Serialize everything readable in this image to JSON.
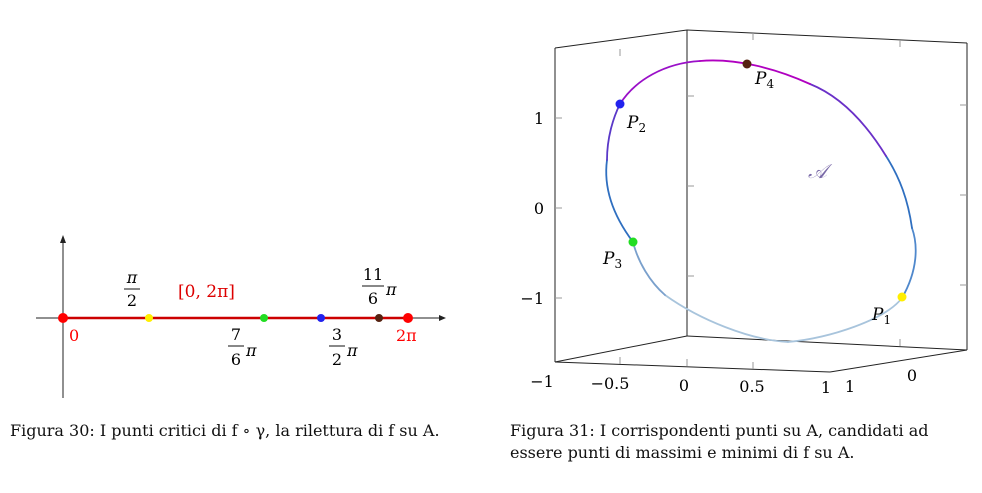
{
  "figure30": {
    "caption": "Figura 30: I punti critici di f ∘ γ, la rilettura di f su A.",
    "interval_label": "[0, 2π]",
    "start_label": "0",
    "end_label": "2π",
    "point_labels": [
      {
        "num": "π",
        "den": "2",
        "suffix": ""
      },
      {
        "num": "7",
        "den": "6",
        "suffix": "π"
      },
      {
        "num": "3",
        "den": "2",
        "suffix": "π"
      },
      {
        "num": "11",
        "den": "6",
        "suffix": "π"
      }
    ],
    "colors": {
      "segment": "#cc0000",
      "endpoints": "#ff0000",
      "p1": "#ffee00",
      "p2": "#22dd22",
      "p3": "#2222ee",
      "p4": "#552211"
    }
  },
  "figure31": {
    "caption": "Figura 31: I corrispondenti punti su A, candidati ad essere punti di massimi e minimi di f su A.",
    "surface_label": "𝒜",
    "z_ticks": [
      "1",
      "0",
      "−1"
    ],
    "x_ticks": [
      "−1",
      "−0.5",
      "0",
      "0.5",
      "1"
    ],
    "y_ticks": [
      "1",
      "0"
    ],
    "points": [
      {
        "name": "P",
        "sub": "1",
        "color": "#ffee00"
      },
      {
        "name": "P",
        "sub": "2",
        "color": "#2222ee"
      },
      {
        "name": "P",
        "sub": "3",
        "color": "#22dd22"
      },
      {
        "name": "P",
        "sub": "4",
        "color": "#552211"
      }
    ],
    "colors": {
      "curve_low": "#a8c4dc",
      "curve_mid": "#2f6fc0",
      "curve_high": "#b000c0",
      "label_A": "#7a6aa8"
    }
  }
}
